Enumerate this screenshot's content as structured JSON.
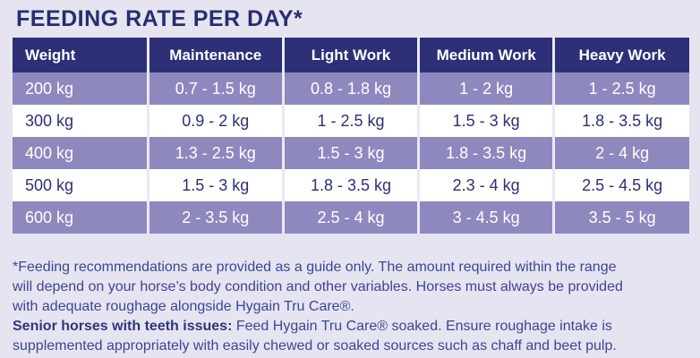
{
  "title": "FEEDING RATE PER DAY*",
  "table": {
    "columns": [
      "Weight",
      "Maintenance",
      "Light Work",
      "Medium Work",
      "Heavy Work"
    ],
    "rows": [
      {
        "weight": "200 kg",
        "values": [
          "0.7 - 1.5 kg",
          "0.8 - 1.8 kg",
          "1 - 2 kg",
          "1 - 2.5 kg"
        ]
      },
      {
        "weight": "300 kg",
        "values": [
          "0.9 - 2 kg",
          "1 - 2.5 kg",
          "1.5 - 3 kg",
          "1.8 - 3.5 kg"
        ]
      },
      {
        "weight": "400 kg",
        "values": [
          "1.3 - 2.5 kg",
          "1.5 - 3 kg",
          "1.8 - 3.5 kg",
          "2 - 4 kg"
        ]
      },
      {
        "weight": "500 kg",
        "values": [
          "1.5 - 3 kg",
          "1.8 - 3.5 kg",
          "2.3 - 4 kg",
          "2.5 - 4.5 kg"
        ]
      },
      {
        "weight": "600 kg",
        "values": [
          "2 - 3.5 kg",
          "2.5 - 4 kg",
          "3 - 4.5 kg",
          "3.5 - 5 kg"
        ]
      }
    ]
  },
  "footnotes": {
    "para1_lines": [
      "*Feeding recommendations are provided as a guide only. The amount required within the range",
      "will depend on your horse’s body condition and other variables. Horses must always be provided",
      "with adequate roughage alongside Hygain Tru Care®."
    ],
    "para2_bold": "Senior horses with teeth issues:",
    "para2_rest_line1": " Feed Hygain Tru Care® soaked. Ensure roughage intake is",
    "para2_line2": "supplemented appropriately with easily chewed or soaked sources such as chaff and beet pulp."
  },
  "colors": {
    "page_background": "#e6e4f0",
    "header_background": "#2d3077",
    "header_text": "#ffffff",
    "purple_row_background": "#8d89be",
    "purple_row_text": "#ffffff",
    "white_row_background": "#ffffff",
    "navy_text": "#2d3077",
    "title_text": "#282c6f",
    "note_text": "#3e4496",
    "column_divider": "#eae8f4"
  }
}
